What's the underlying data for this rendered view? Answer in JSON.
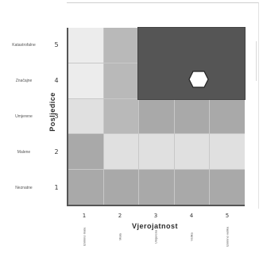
{
  "matrix": {
    "y_axis_title": "Posljedice",
    "x_axis_title": "Vjerojatnost",
    "row_numbers": [
      "5",
      "4",
      "3",
      "2",
      "1"
    ],
    "row_labels": [
      "Katastrofalne",
      "Značajne",
      "Umjerene",
      "Malene",
      "Neznatne"
    ],
    "col_numbers": [
      "1",
      "2",
      "3",
      "4",
      "5"
    ],
    "col_labels": [
      "Iznimno mala",
      "Mala",
      "Umjerena",
      "Velika",
      "Iznimno velika"
    ],
    "cells": [
      [
        "w",
        "m",
        "x",
        "x",
        "x"
      ],
      [
        "w",
        "m",
        "x",
        "x",
        "x"
      ],
      [
        "l",
        "m",
        "d",
        "d",
        "d"
      ],
      [
        "d",
        "l",
        "l",
        "l",
        "l"
      ],
      [
        "d",
        "d",
        "d",
        "d",
        "d"
      ]
    ],
    "marker": {
      "row": 2,
      "col": 4,
      "shape": "hexagon"
    }
  }
}
